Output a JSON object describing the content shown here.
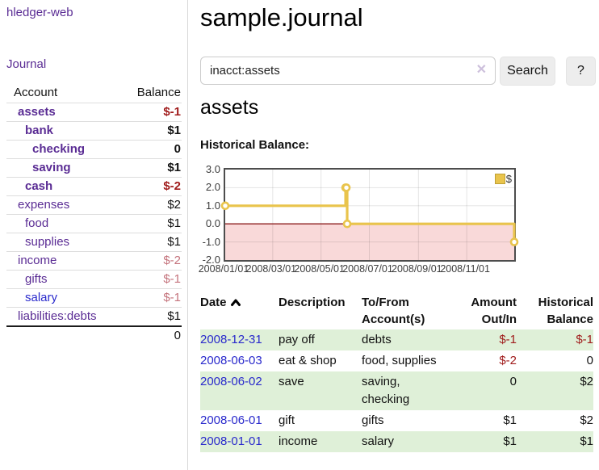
{
  "sidebar": {
    "brand": "hledger-web",
    "journal_link": "Journal",
    "table": {
      "account_header": "Account",
      "balance_header": "Balance",
      "rows": [
        {
          "account": "assets",
          "balance": "$-1",
          "depth": 1,
          "bold": true,
          "link_color": "purple",
          "amount_class": "neg-strong"
        },
        {
          "account": "bank",
          "balance": "$1",
          "depth": 2,
          "bold": true,
          "link_color": "purple",
          "amount_class": ""
        },
        {
          "account": "checking",
          "balance": "0",
          "depth": 3,
          "bold": true,
          "link_color": "purple",
          "amount_class": ""
        },
        {
          "account": "saving",
          "balance": "$1",
          "depth": 3,
          "bold": true,
          "link_color": "purple",
          "amount_class": ""
        },
        {
          "account": "cash",
          "balance": "$-2",
          "depth": 2,
          "bold": true,
          "link_color": "purple",
          "amount_class": "neg-strong"
        },
        {
          "account": "expenses",
          "balance": "$2",
          "depth": 1,
          "bold": false,
          "link_color": "purple",
          "amount_class": ""
        },
        {
          "account": "food",
          "balance": "$1",
          "depth": 2,
          "bold": false,
          "link_color": "purple",
          "amount_class": ""
        },
        {
          "account": "supplies",
          "balance": "$1",
          "depth": 2,
          "bold": false,
          "link_color": "purple",
          "amount_class": ""
        },
        {
          "account": "income",
          "balance": "$-2",
          "depth": 1,
          "bold": false,
          "link_color": "purple",
          "amount_class": "neg-light"
        },
        {
          "account": "gifts",
          "balance": "$-1",
          "depth": 2,
          "bold": false,
          "link_color": "purple",
          "amount_class": "neg-light"
        },
        {
          "account": "salary",
          "balance": "$-1",
          "depth": 2,
          "bold": false,
          "link_color": "blue",
          "amount_class": "neg-light"
        },
        {
          "account": "liabilities:debts",
          "balance": "$1",
          "depth": 1,
          "bold": false,
          "link_color": "purple",
          "amount_class": ""
        }
      ],
      "total": "0"
    }
  },
  "header": {
    "title": "sample.journal"
  },
  "search": {
    "value": "inacct:assets",
    "clear_icon": "✕",
    "button_label": "Search",
    "help_label": "?"
  },
  "account_page": {
    "title": "assets",
    "chart_heading": "Historical Balance:"
  },
  "chart_data": {
    "type": "line",
    "step": true,
    "title": "Historical Balance:",
    "series": [
      {
        "name": "$",
        "color": "#e9c44c",
        "points": [
          [
            "2008-01-01",
            1
          ],
          [
            "2008-06-01",
            2
          ],
          [
            "2008-06-02",
            2
          ],
          [
            "2008-06-03",
            0
          ],
          [
            "2008-12-31",
            -1
          ]
        ]
      }
    ],
    "ylim": [
      -2,
      3
    ],
    "yticks": [
      "3.0",
      "2.0",
      "1.0",
      "0.0",
      "-1.0",
      "-2.0"
    ],
    "xticks": [
      "2008/01/01",
      "2008/03/01",
      "2008/05/01",
      "2008/07/01",
      "2008/09/01",
      "2008/11/01"
    ],
    "x_start": "2008-01-01",
    "x_end": "2008-12-31",
    "grid": true,
    "legend_position": "top-right",
    "negative_region_color": "#f9d9d9",
    "zero_line_color": "#8b1c1c",
    "gridline_color": "rgba(0,0,0,0.10)"
  },
  "register": {
    "headers": {
      "date": "Date",
      "description": "Description",
      "accounts": "To/From\nAccount(s)",
      "amount": "Amount\nOut/In",
      "balance": "Historical\nBalance"
    },
    "sort": {
      "column": "date",
      "direction": "ascending"
    },
    "rows": [
      {
        "date": "2008-12-31",
        "description": "pay off",
        "accounts": "debts",
        "amount": "$-1",
        "amount_neg": true,
        "balance": "$-1",
        "balance_neg": true,
        "shade": true
      },
      {
        "date": "2008-06-03",
        "description": "eat & shop",
        "accounts": "food, supplies",
        "amount": "$-2",
        "amount_neg": true,
        "balance": "0",
        "balance_neg": false,
        "shade": false
      },
      {
        "date": "2008-06-02",
        "description": "save",
        "accounts": "saving,\nchecking",
        "amount": "0",
        "amount_neg": false,
        "balance": "$2",
        "balance_neg": false,
        "shade": true
      },
      {
        "date": "2008-06-01",
        "description": "gift",
        "accounts": "gifts",
        "amount": "$1",
        "amount_neg": false,
        "balance": "$2",
        "balance_neg": false,
        "shade": false
      },
      {
        "date": "2008-01-01",
        "description": "income",
        "accounts": "salary",
        "amount": "$1",
        "amount_neg": false,
        "balance": "$1",
        "balance_neg": false,
        "shade": true
      }
    ]
  }
}
